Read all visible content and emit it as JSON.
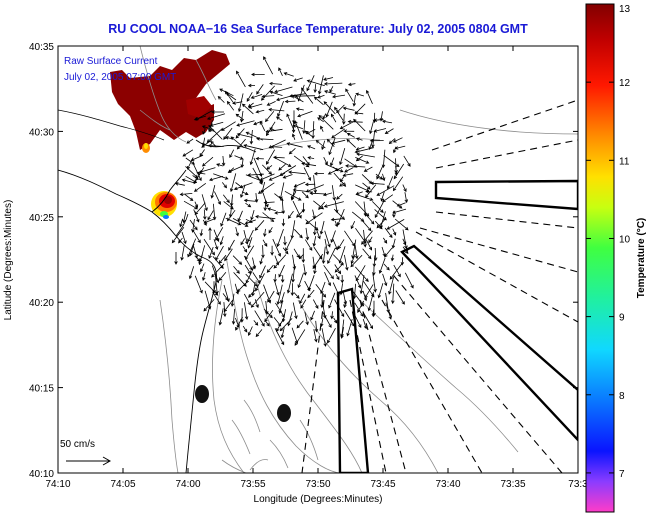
{
  "title": "RU COOL  NOAA−16  Sea Surface Temperature:  July 02, 2005 0804 GMT",
  "legend": {
    "line1": "Raw Surface Current",
    "line2": "July 02, 2005 07:00 GMT"
  },
  "axes": {
    "xlabel": "Longitude (Degrees:Minutes)",
    "ylabel": "Latitude (Degrees:Minutes)",
    "x_ticks": [
      "74:10",
      "74:05",
      "74:00",
      "73:55",
      "73:50",
      "73:45",
      "73:40",
      "73:35",
      "73:3"
    ],
    "y_ticks": [
      "40:35",
      "40:30",
      "40:25",
      "40:20",
      "40:15",
      "40:10"
    ]
  },
  "colorbar": {
    "label": "Temperature (°C)",
    "ticks": [
      "13",
      "12",
      "11",
      "10",
      "9",
      "8",
      "7"
    ],
    "min": 6.5,
    "max": 13
  },
  "scale": {
    "label": "50 cm/s"
  }
}
